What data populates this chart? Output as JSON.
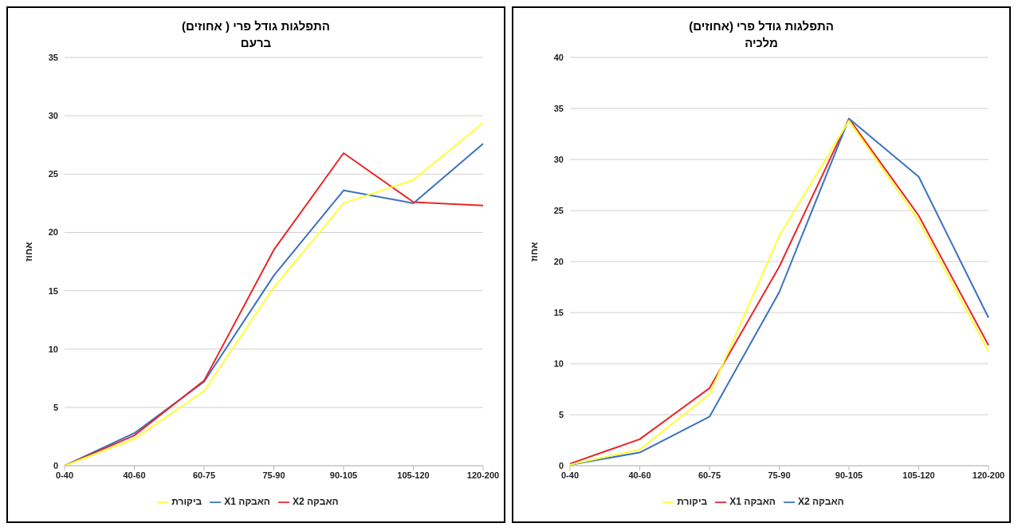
{
  "chart_data": [
    {
      "type": "line",
      "title": "התפלגות גודל פרי ( אחוזים)",
      "subtitle": "ברעם",
      "ylabel": "אחוז",
      "categories": [
        "0-40",
        "40-60",
        "60-75",
        "75-90",
        "90-105",
        "105-120",
        "120-200"
      ],
      "ylim": [
        0,
        35
      ],
      "yticks": [
        0,
        5,
        10,
        15,
        20,
        25,
        30,
        35
      ],
      "grid": "y",
      "legend": "bottom",
      "marker": "none",
      "line_style": "solid",
      "series": [
        {
          "name": "האבקה X1",
          "color": "#3b72c0",
          "values": [
            0,
            2.8,
            7.2,
            16.3,
            23.6,
            22.5,
            27.6
          ]
        },
        {
          "name": "האבקה X2",
          "color": "#e8262a",
          "values": [
            0,
            2.6,
            7.3,
            18.5,
            26.8,
            22.6,
            22.3
          ]
        },
        {
          "name": "ביקורת",
          "color": "#ffff33",
          "values": [
            0,
            2.3,
            6.4,
            15.3,
            22.5,
            24.5,
            29.4
          ]
        }
      ]
    },
    {
      "type": "line",
      "title": "התפלגות גודל פרי (אחוזים)",
      "subtitle": "מלכיה",
      "ylabel": "אחוז",
      "categories": [
        "0-40",
        "40-60",
        "60-75",
        "75-90",
        "90-105",
        "105-120",
        "120-200"
      ],
      "ylim": [
        0,
        40
      ],
      "yticks": [
        0,
        5,
        10,
        15,
        20,
        25,
        30,
        35,
        40
      ],
      "grid": "y",
      "legend": "bottom",
      "marker": "none",
      "line_style": "solid",
      "series": [
        {
          "name": "האבקה X1",
          "color": "#e8262a",
          "values": [
            0.2,
            2.6,
            7.6,
            19.5,
            34,
            24.5,
            11.8
          ]
        },
        {
          "name": "האבקה X2",
          "color": "#3b72c0",
          "values": [
            0.1,
            1.3,
            4.8,
            17,
            34,
            28.3,
            14.5
          ]
        },
        {
          "name": "ביקורת",
          "color": "#ffff33",
          "values": [
            0.1,
            1.6,
            7,
            22.5,
            33.8,
            24,
            11.2
          ]
        }
      ]
    }
  ]
}
